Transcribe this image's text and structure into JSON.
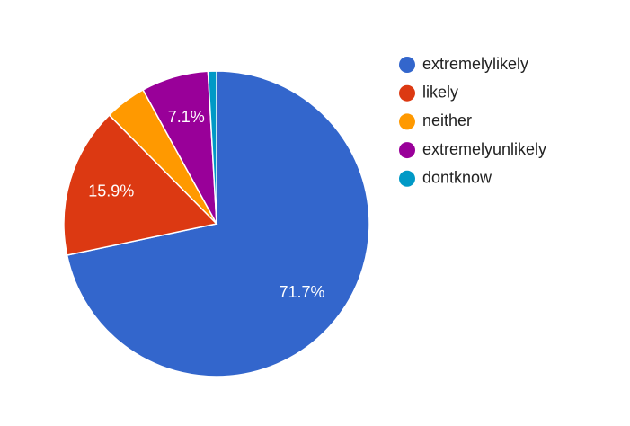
{
  "chart_data": {
    "type": "pie",
    "categories": [
      "extremelylikely",
      "likely",
      "neither",
      "extremelyunlikely",
      "dontknow"
    ],
    "values": [
      71.7,
      15.9,
      4.4,
      7.1,
      0.9
    ],
    "value_labels": [
      "71.7%",
      "15.9%",
      null,
      "7.1%",
      null
    ],
    "colors": [
      "#3366cc",
      "#dc3912",
      "#ff9900",
      "#990099",
      "#0099c6"
    ],
    "legend": "right"
  }
}
